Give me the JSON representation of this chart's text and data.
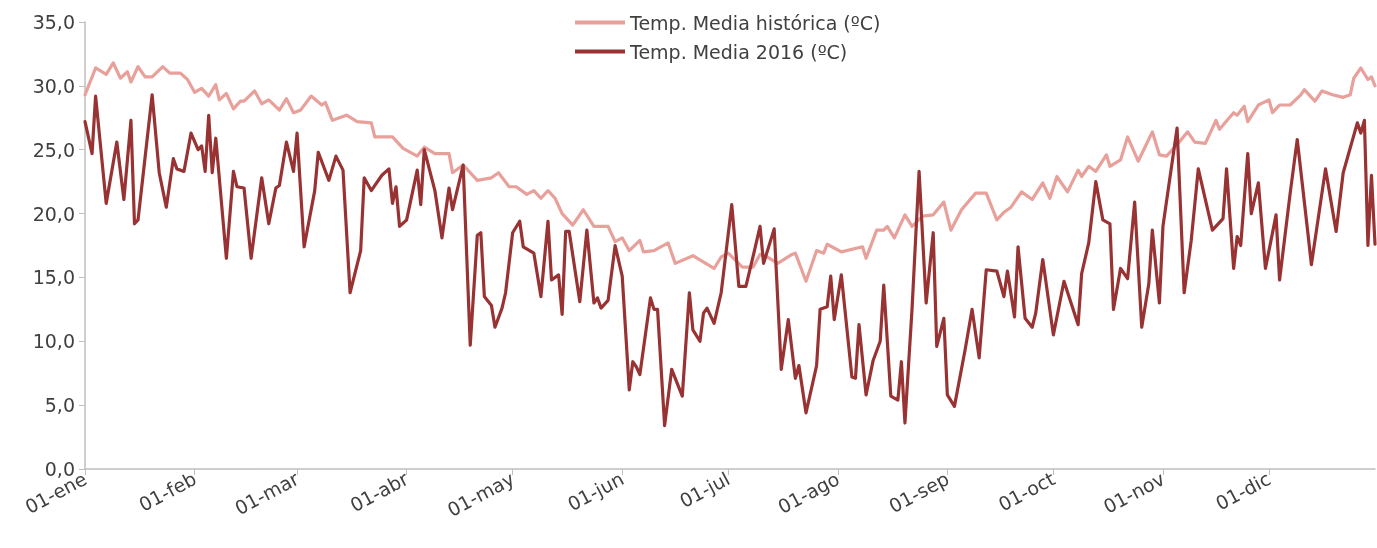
{
  "chart_data": {
    "type": "line",
    "marker": "none",
    "line_style": "solid",
    "grid": false,
    "legend": "top",
    "xlim": [
      "--01-01",
      "--12-31"
    ],
    "xticks": [
      {
        "value": "--01-01",
        "label": "01-ene"
      },
      {
        "value": "--02-01",
        "label": "01-feb"
      },
      {
        "value": "--03-01",
        "label": "01-mar"
      },
      {
        "value": "--04-01",
        "label": "01-abr"
      },
      {
        "value": "--05-01",
        "label": "01-may"
      },
      {
        "value": "--06-01",
        "label": "01-jun"
      },
      {
        "value": "--07-01",
        "label": "01-jul"
      },
      {
        "value": "--08-01",
        "label": "01-ago"
      },
      {
        "value": "--09-01",
        "label": "01-sep"
      },
      {
        "value": "--10-01",
        "label": "01-oct"
      },
      {
        "value": "--11-01",
        "label": "01-nov"
      },
      {
        "value": "--12-01",
        "label": "01-dic"
      }
    ],
    "ylim": [
      0,
      35
    ],
    "yticks": [
      {
        "value": 0,
        "label": "0,0"
      },
      {
        "value": 5,
        "label": "5,0"
      },
      {
        "value": 10,
        "label": "10,0"
      },
      {
        "value": 15,
        "label": "15,0"
      },
      {
        "value": 20,
        "label": "20,0"
      },
      {
        "value": 25,
        "label": "25,0"
      },
      {
        "value": 30,
        "label": "30,0"
      },
      {
        "value": 35,
        "label": "35,0"
      }
    ],
    "series": [
      {
        "name": "Temp. Media histórica (ºC)",
        "color": "#e8a09b",
        "x": [
          "--01-01",
          "--01-04",
          "--01-07",
          "--01-09",
          "--01-11",
          "--01-13",
          "--01-14",
          "--01-16",
          "--01-18",
          "--01-20",
          "--01-23",
          "--01-25",
          "--01-28",
          "--01-30",
          "--02-01",
          "--02-03",
          "--02-05",
          "--02-07",
          "--02-08",
          "--02-10",
          "--02-12",
          "--02-14",
          "--02-15",
          "--02-18",
          "--02-20",
          "--02-22",
          "--02-25",
          "--02-27",
          "--02-29",
          "--03-02",
          "--03-05",
          "--03-08",
          "--03-09",
          "--03-11",
          "--03-15",
          "--03-18",
          "--03-22",
          "--03-23",
          "--03-28",
          "--03-31",
          "--04-04",
          "--04-06",
          "--04-09",
          "--04-13",
          "--04-14",
          "--04-17",
          "--04-21",
          "--04-25",
          "--04-27",
          "--04-30",
          "--05-02",
          "--05-05",
          "--05-07",
          "--05-09",
          "--05-11",
          "--05-13",
          "--05-15",
          "--05-18",
          "--05-21",
          "--05-24",
          "--05-28",
          "--05-30",
          "--06-01",
          "--06-03",
          "--06-06",
          "--06-07",
          "--06-10",
          "--06-14",
          "--06-16",
          "--06-21",
          "--06-27",
          "--06-29",
          "--07-01",
          "--07-05",
          "--07-08",
          "--07-10",
          "--07-12",
          "--07-15",
          "--07-19",
          "--07-20",
          "--07-23",
          "--07-26",
          "--07-28",
          "--07-29",
          "--08-02",
          "--08-08",
          "--08-09",
          "--08-12",
          "--08-14",
          "--08-15",
          "--08-17",
          "--08-20",
          "--08-22",
          "--08-25",
          "--08-28",
          "--08-31",
          "--09-02",
          "--09-05",
          "--09-09",
          "--09-12",
          "--09-15",
          "--09-17",
          "--09-19",
          "--09-22",
          "--09-25",
          "--09-28",
          "--09-30",
          "--10-02",
          "--10-05",
          "--10-08",
          "--10-09",
          "--10-11",
          "--10-13",
          "--10-16",
          "--10-17",
          "--10-20",
          "--10-22",
          "--10-25",
          "--10-29",
          "--10-31",
          "--11-02",
          "--11-05",
          "--11-08",
          "--11-10",
          "--11-13",
          "--11-16",
          "--11-17",
          "--11-21",
          "--11-22",
          "--11-24",
          "--11-25",
          "--11-28",
          "--12-01",
          "--12-02",
          "--12-04",
          "--12-07",
          "--12-10",
          "--12-11",
          "--12-14",
          "--12-16",
          "--12-19",
          "--12-22",
          "--12-24",
          "--12-25",
          "--12-27",
          "--12-29",
          "--12-30",
          "--12-31"
        ],
        "values": [
          29.3,
          31.4,
          30.9,
          31.8,
          30.6,
          31.1,
          30.3,
          31.5,
          30.7,
          30.7,
          31.5,
          31,
          31,
          30.5,
          29.5,
          29.8,
          29.2,
          30.1,
          28.9,
          29.4,
          28.2,
          28.8,
          28.8,
          29.6,
          28.6,
          28.9,
          28.1,
          29,
          27.9,
          28.1,
          29.2,
          28.5,
          28.7,
          27.3,
          27.7,
          27.2,
          27.1,
          26,
          26,
          25.1,
          24.5,
          25.2,
          24.7,
          24.7,
          23.2,
          23.8,
          22.6,
          22.8,
          23.2,
          22.1,
          22.1,
          21.5,
          21.8,
          21.2,
          21.8,
          21.2,
          20,
          19.1,
          20.3,
          19,
          19,
          17.8,
          18.1,
          17.1,
          17.9,
          17,
          17.1,
          17.7,
          16.1,
          16.7,
          15.7,
          16.6,
          16.9,
          15.8,
          15.8,
          16.8,
          16.6,
          16.1,
          16.8,
          16.9,
          14.7,
          17.1,
          16.9,
          17.6,
          17,
          17.4,
          16.5,
          18.7,
          18.7,
          19,
          18.1,
          19.9,
          19,
          19.8,
          19.9,
          20.9,
          18.7,
          20.3,
          21.6,
          21.6,
          19.5,
          20.1,
          20.5,
          21.7,
          21.1,
          22.4,
          21.2,
          22.9,
          21.7,
          23.4,
          22.9,
          23.7,
          23.3,
          24.6,
          23.7,
          24.2,
          26,
          24.1,
          26.4,
          24.6,
          24.5,
          25.4,
          26.4,
          25.6,
          25.5,
          27.3,
          26.6,
          27.9,
          27.7,
          28.4,
          27.2,
          28.5,
          28.9,
          27.9,
          28.5,
          28.5,
          29.3,
          29.7,
          28.8,
          29.6,
          29.3,
          29.1,
          29.3,
          30.6,
          31.4,
          30.5,
          30.7,
          30
        ]
      },
      {
        "name": "Temp. Media 2016 (ºC)",
        "color": "#993333",
        "x": [
          "--01-01",
          "--01-03",
          "--01-04",
          "--01-07",
          "--01-10",
          "--01-12",
          "--01-14",
          "--01-15",
          "--01-16",
          "--01-20",
          "--01-22",
          "--01-24",
          "--01-26",
          "--01-27",
          "--01-29",
          "--01-31",
          "--02-02",
          "--02-03",
          "--02-04",
          "--02-05",
          "--02-06",
          "--02-07",
          "--02-10",
          "--02-12",
          "--02-13",
          "--02-15",
          "--02-17",
          "--02-20",
          "--02-22",
          "--02-24",
          "--02-25",
          "--02-27",
          "--02-29",
          "--03-01",
          "--03-03",
          "--03-06",
          "--03-07",
          "--03-10",
          "--03-12",
          "--03-14",
          "--03-16",
          "--03-19",
          "--03-20",
          "--03-22",
          "--03-25",
          "--03-27",
          "--03-28",
          "--03-29",
          "--03-30",
          "--04-01",
          "--04-04",
          "--04-05",
          "--04-06",
          "--04-09",
          "--04-11",
          "--04-13",
          "--04-14",
          "--04-17",
          "--04-19",
          "--04-21",
          "--04-22",
          "--04-23",
          "--04-25",
          "--04-26",
          "--04-28",
          "--04-29",
          "--05-01",
          "--05-03",
          "--05-04",
          "--05-07",
          "--05-09",
          "--05-11",
          "--05-12",
          "--05-14",
          "--05-15",
          "--05-16",
          "--05-17",
          "--05-20",
          "--05-22",
          "--05-24",
          "--05-25",
          "--05-26",
          "--05-28",
          "--05-30",
          "--06-01",
          "--06-03",
          "--06-04",
          "--06-05",
          "--06-06",
          "--06-09",
          "--06-10",
          "--06-11",
          "--06-13",
          "--06-15",
          "--06-18",
          "--06-20",
          "--06-21",
          "--06-23",
          "--06-24",
          "--06-25",
          "--06-27",
          "--06-29",
          "--07-02",
          "--07-04",
          "--07-06",
          "--07-08",
          "--07-10",
          "--07-11",
          "--07-14",
          "--07-16",
          "--07-18",
          "--07-20",
          "--07-21",
          "--07-23",
          "--07-26",
          "--07-27",
          "--07-29",
          "--07-30",
          "--07-31",
          "--08-02",
          "--08-05",
          "--08-06",
          "--08-07",
          "--08-09",
          "--08-11",
          "--08-13",
          "--08-14",
          "--08-16",
          "--08-18",
          "--08-19",
          "--08-20",
          "--08-22",
          "--08-24",
          "--08-26",
          "--08-28",
          "--08-29",
          "--08-31",
          "--09-01",
          "--09-03",
          "--09-06",
          "--09-08",
          "--09-10",
          "--09-12",
          "--09-15",
          "--09-17",
          "--09-18",
          "--09-20",
          "--09-21",
          "--09-23",
          "--09-25",
          "--09-26",
          "--09-28",
          "--10-01",
          "--10-04",
          "--10-08",
          "--10-09",
          "--10-11",
          "--10-13",
          "--10-15",
          "--10-17",
          "--10-18",
          "--10-20",
          "--10-22",
          "--10-24",
          "--10-26",
          "--10-28",
          "--10-29",
          "--10-31",
          "--11-01",
          "--11-05",
          "--11-07",
          "--11-09",
          "--11-11",
          "--11-15",
          "--11-18",
          "--11-19",
          "--11-21",
          "--11-22",
          "--11-23",
          "--11-25",
          "--11-26",
          "--11-28",
          "--11-30",
          "--12-03",
          "--12-04",
          "--12-07",
          "--12-09",
          "--12-12",
          "--12-13",
          "--12-17",
          "--12-20",
          "--12-22",
          "--12-26",
          "--12-27",
          "--12-28",
          "--12-29",
          "--12-30",
          "--12-31"
        ],
        "values": [
          27.2,
          24.7,
          29.2,
          20.8,
          25.6,
          21.1,
          27.3,
          19.2,
          19.5,
          29.3,
          23.2,
          20.5,
          24.3,
          23.5,
          23.3,
          26.3,
          25,
          25.3,
          23.3,
          27.7,
          23.2,
          25.9,
          16.5,
          23.3,
          22.1,
          22,
          16.5,
          22.8,
          19.2,
          22,
          22.2,
          25.6,
          23.3,
          26.3,
          17.4,
          21.8,
          24.8,
          22.6,
          24.5,
          23.4,
          13.8,
          17.1,
          22.8,
          21.8,
          23,
          23.5,
          20.8,
          22.1,
          19,
          19.5,
          23.4,
          20.7,
          25,
          21.8,
          18.1,
          22,
          20.3,
          23.8,
          9.7,
          18.3,
          18.5,
          13.5,
          12.8,
          11.1,
          12.6,
          13.8,
          18.5,
          19.4,
          17.4,
          16.9,
          13.5,
          19.4,
          14.8,
          15.2,
          12.1,
          18.6,
          18.6,
          13.1,
          18.7,
          13,
          13.4,
          12.6,
          13.2,
          17.5,
          15.1,
          6.2,
          8.4,
          8,
          7.4,
          13.4,
          12.5,
          12.5,
          3.4,
          7.8,
          5.7,
          13.8,
          10.9,
          10,
          12.2,
          12.6,
          11.4,
          13.8,
          20.7,
          14.3,
          14.3,
          16.6,
          19,
          16.1,
          18.8,
          7.8,
          11.7,
          7.1,
          8.1,
          4.4,
          8.1,
          12.5,
          12.7,
          15.1,
          11.7,
          15.2,
          7.2,
          7.1,
          11.3,
          5.8,
          8.5,
          10,
          14.4,
          5.7,
          5.4,
          8.4,
          3.6,
          12.5,
          23.3,
          13,
          18.5,
          9.6,
          11.8,
          5.8,
          4.9,
          9.3,
          12.5,
          8.7,
          15.6,
          15.5,
          13.5,
          15.5,
          11.9,
          17.4,
          11.8,
          11.1,
          12.2,
          16.4,
          10.5,
          14.7,
          11.3,
          15.3,
          17.7,
          22.5,
          19.5,
          19.2,
          12.5,
          15.7,
          14.9,
          20.9,
          11.1,
          14.5,
          18.7,
          13,
          19,
          26.7,
          13.8,
          17.9,
          23.5,
          18.7,
          19.6,
          23.5,
          15.7,
          18.2,
          17.5,
          24.7,
          20,
          22.4,
          15.7,
          19.9,
          14.8,
          21.6,
          25.8,
          18.5,
          16,
          23.5,
          18.6,
          23.2,
          27.1,
          26.3,
          27.3,
          17.5,
          23,
          17.6
        ]
      }
    ]
  }
}
